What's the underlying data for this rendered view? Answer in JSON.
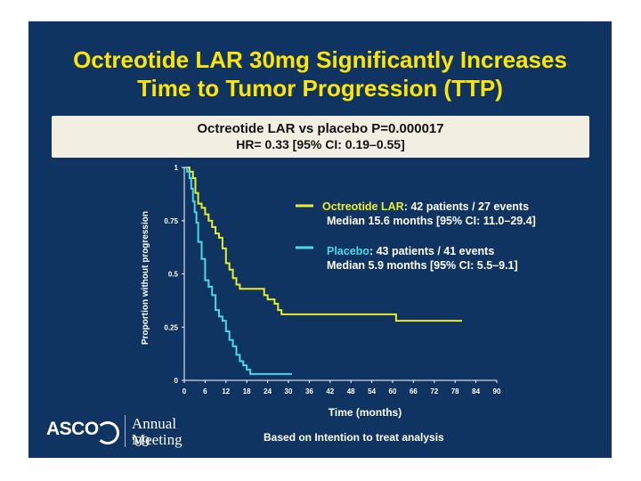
{
  "slide": {
    "title_line1": "Octreotide LAR 30mg Significantly Increases",
    "title_line2": "Time to Tumor Progression (TTP)",
    "stats_line1": "Octreotide LAR vs placebo P=0.000017",
    "stats_line2": "HR= 0.33 [95% CI: 0.19–0.55]",
    "footnote": "Based on Intention to treat analysis",
    "logo": {
      "asco": "ASCO",
      "annual": "Annual '09",
      "meeting": "Meeting"
    }
  },
  "colors": {
    "background": "#0f3461",
    "title": "#ffe600",
    "octreotide": "#e8ec2a",
    "placebo": "#4ad7e8"
  },
  "chart_data": {
    "type": "line",
    "step": true,
    "xlabel": "Time (months)",
    "ylabel": "Proportion without progression",
    "xlim": [
      0,
      90
    ],
    "ylim": [
      0,
      1
    ],
    "x_ticks": [
      0,
      6,
      12,
      18,
      24,
      30,
      36,
      42,
      48,
      54,
      60,
      66,
      72,
      78,
      84,
      90
    ],
    "y_ticks": [
      0,
      0.25,
      0.5,
      0.75,
      1
    ],
    "y_tick_labels": [
      "0",
      "0.25",
      "0.5",
      "0.75",
      "1"
    ],
    "series": [
      {
        "name": "Octreotide LAR",
        "legend_name": "Octreotide LAR",
        "legend_detail": ": 42 patients / 27 events",
        "legend_median": "Median 15.6 months [95% CI: 11.0–29.4]",
        "x": [
          0,
          1.5,
          2.5,
          3.2,
          4,
          5,
          6,
          7,
          8,
          9,
          10,
          11,
          12,
          13,
          14,
          15,
          16,
          22,
          23,
          24,
          26,
          27,
          28,
          60,
          61,
          80
        ],
        "y": [
          1,
          0.98,
          0.95,
          0.88,
          0.83,
          0.81,
          0.78,
          0.75,
          0.72,
          0.69,
          0.67,
          0.62,
          0.55,
          0.52,
          0.48,
          0.45,
          0.43,
          0.43,
          0.4,
          0.38,
          0.36,
          0.33,
          0.31,
          0.31,
          0.28,
          0.28
        ]
      },
      {
        "name": "Placebo",
        "legend_name": "Placebo",
        "legend_detail": ": 43  patients / 41 events",
        "legend_median": "Median 5.9 months [95% CI: 5.5–9.1]",
        "x": [
          0,
          0.8,
          1.5,
          2,
          2.5,
          3,
          3.5,
          4,
          5,
          6,
          7,
          8,
          9,
          10,
          11,
          12,
          13,
          14,
          15,
          16,
          17,
          18,
          19,
          20,
          22,
          31
        ],
        "y": [
          1,
          0.98,
          0.95,
          0.9,
          0.84,
          0.79,
          0.74,
          0.65,
          0.57,
          0.47,
          0.44,
          0.4,
          0.33,
          0.3,
          0.28,
          0.23,
          0.19,
          0.16,
          0.12,
          0.09,
          0.07,
          0.05,
          0.03,
          0.03,
          0.03,
          0.03
        ]
      }
    ]
  }
}
